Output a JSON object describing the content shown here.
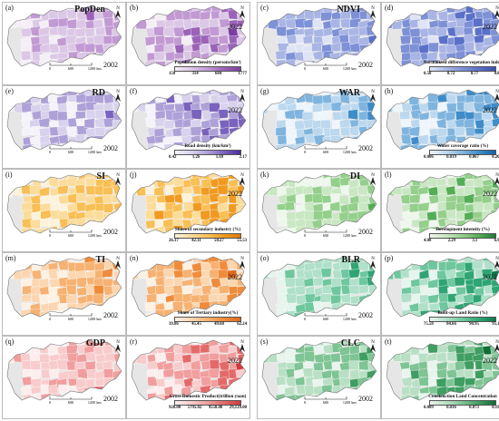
{
  "scale_bar": {
    "ticks": [
      "0",
      "600",
      "1200"
    ],
    "unit": "km"
  },
  "indicators": [
    {
      "key": "PopDen",
      "title": "PopDen",
      "label_a": "(a)",
      "label_b": "(b)",
      "year_a": "2002",
      "year_b": "2022",
      "legend_title": "Population density (persons/km²)",
      "legend_ticks": [
        "150",
        "314",
        "684",
        "1777"
      ],
      "colors": [
        "#f5eef7",
        "#dcc8e6",
        "#c19ad3",
        "#9a63b8",
        "#7a3fa0"
      ]
    },
    {
      "key": "NDVI",
      "title": "NDVI",
      "label_a": "(c)",
      "label_b": "(d)",
      "year_a": "2002",
      "year_b": "2022",
      "legend_title": "Normalized difference vegetation index",
      "legend_ticks": [
        "0.58",
        "0.72",
        "0.77",
        "0.82"
      ],
      "colors": [
        "#dfe4f4",
        "#a9b5e4",
        "#7e91d6",
        "#5b70c8",
        "#3c52b0"
      ]
    },
    {
      "key": "RD",
      "title": "RD",
      "label_a": "(e)",
      "label_b": "(f)",
      "year_a": "2002",
      "year_b": "2022",
      "legend_title": "Road density (km/km²)",
      "legend_ticks": [
        "0.42",
        "1.26",
        "1.69",
        "2.17"
      ],
      "colors": [
        "#f5f3fa",
        "#d8d2ec",
        "#aea1d8",
        "#7a63bc",
        "#4b2a9e"
      ]
    },
    {
      "key": "WAR",
      "title": "WAR",
      "label_a": "(g)",
      "label_b": "(h)",
      "year_a": "2002",
      "year_b": "2022",
      "legend_title": "Water coverage ratio (%)",
      "legend_ticks": [
        "0.006",
        "0.019",
        "0.067",
        "0.205"
      ],
      "colors": [
        "#eef5fb",
        "#bcd8ee",
        "#7fb4de",
        "#3e8cc8",
        "#1561a8"
      ]
    },
    {
      "key": "SI",
      "title": "SI",
      "label_a": "(i)",
      "label_b": "(j)",
      "year_a": "2002",
      "year_b": "2022",
      "legend_title": "Share of secondary industry (%)",
      "legend_ticks": [
        "26.17",
        "42.11",
        "50.27",
        "55.53"
      ],
      "colors": [
        "#fdf3dc",
        "#fbdc9a",
        "#f8bf55",
        "#f09a22",
        "#dd7a08"
      ]
    },
    {
      "key": "DI",
      "title": "DI",
      "label_a": "(k)",
      "label_b": "(l)",
      "year_a": "2002",
      "year_b": "2022",
      "legend_title": "Development intensity (%)",
      "legend_ticks": [
        "4.08",
        "2.29",
        "3.1",
        "6.92"
      ],
      "colors": [
        "#eef7ec",
        "#c9e7c2",
        "#94cf8c",
        "#54ad57",
        "#1f7a34"
      ]
    },
    {
      "key": "TI",
      "title": "TI",
      "label_a": "(m)",
      "label_b": "(n)",
      "year_a": "2002",
      "year_b": "2022",
      "legend_title": "Share of Tertiary industry(%)",
      "legend_ticks": [
        "39.86",
        "45.45",
        "49.60",
        "62.24"
      ],
      "colors": [
        "#fdf1e4",
        "#fbd6b0",
        "#f6b272",
        "#ef8c3b",
        "#e0691a"
      ]
    },
    {
      "key": "BLR",
      "title": "BLR",
      "label_a": "(o)",
      "label_b": "(p)",
      "year_a": "2002",
      "year_b": "2022",
      "legend_title": "Built-up Land Ratio (%)",
      "legend_ticks": [
        "75.58",
        "84.66",
        "90.95",
        "95.18"
      ],
      "colors": [
        "#e6f5ee",
        "#b0e0c9",
        "#6ec79e",
        "#2fa574",
        "#0d7a4e"
      ]
    },
    {
      "key": "GDP",
      "title": "GDP",
      "label_a": "(q)",
      "label_b": "(r)",
      "year_a": "2002",
      "year_b": "2022",
      "legend_title": "Gross Domestic Product(trillion yuan)",
      "legend_ticks": [
        "928.00",
        "5795.02",
        "9558.00",
        "29,129.00"
      ],
      "colors": [
        "#fdeeee",
        "#f8cccc",
        "#f09e9e",
        "#e46a6a",
        "#d13b3b"
      ]
    },
    {
      "key": "CLC",
      "title": "CLC",
      "label_a": "(s)",
      "label_b": "(t)",
      "year_a": "2002",
      "year_b": "2022",
      "legend_title": "Construction Land Concentration",
      "legend_ticks": [
        "0.009",
        "0.036",
        "0.073",
        "0.191"
      ],
      "colors": [
        "#e8f4ec",
        "#b9e0c4",
        "#7fc495",
        "#3f9e62",
        "#0f6e35"
      ]
    }
  ]
}
